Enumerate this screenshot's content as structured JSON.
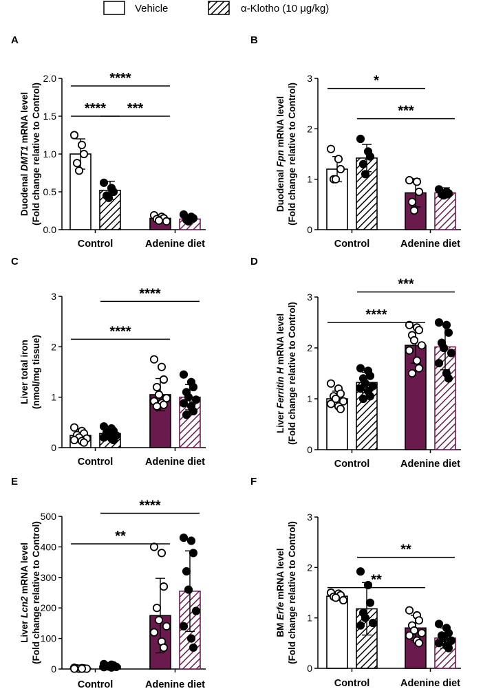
{
  "legend": {
    "vehicle_label": "Vehicle",
    "klotho_label": "α-Klotho (10 μg/kg)"
  },
  "colors": {
    "vehicle_fill": "#ffffff",
    "adenine_fill": "#6b1a4d",
    "klotho_hatch_control": "#000000",
    "klotho_hatch_adenine": "#6b1a4d",
    "ink": "#000000"
  },
  "chart_data": [
    {
      "panel": "A",
      "type": "bar",
      "ylabel_parts": [
        [
          "Duodenal ",
          "n"
        ],
        [
          "DMT1",
          "i"
        ],
        [
          " mRNA level",
          "n"
        ]
      ],
      "ylabel2": "(Fold change relative to Control)",
      "categories": [
        "Control",
        "Adenine diet"
      ],
      "ylim": [
        0,
        2.0
      ],
      "yticks": [
        0,
        0.5,
        1.0,
        1.5,
        2.0
      ],
      "ytick_labels": [
        "0.0",
        "0.5",
        "1.0",
        "1.5",
        "2.0"
      ],
      "bars": [
        {
          "group": 0,
          "treatment": "vehicle",
          "mean": 1.0,
          "sd": 0.2,
          "points": [
            1.25,
            1.12,
            1.0,
            0.88,
            0.78
          ]
        },
        {
          "group": 0,
          "treatment": "klotho",
          "mean": 0.52,
          "sd": 0.12,
          "points": [
            0.62,
            0.55,
            0.5,
            0.45,
            0.42
          ]
        },
        {
          "group": 1,
          "treatment": "vehicle",
          "mean": 0.15,
          "sd": 0.04,
          "points": [
            0.19,
            0.17,
            0.15,
            0.14,
            0.12,
            0.11
          ]
        },
        {
          "group": 1,
          "treatment": "klotho",
          "mean": 0.14,
          "sd": 0.04,
          "points": [
            0.2,
            0.17,
            0.15,
            0.13,
            0.11
          ]
        }
      ],
      "significance": [
        {
          "from": 0,
          "to": 2,
          "y": 1.9,
          "label": "****"
        },
        {
          "from": 0,
          "to": 1,
          "y": 1.5,
          "label": "****"
        },
        {
          "from": 1,
          "to": 2,
          "y": 1.5,
          "label": "***"
        }
      ]
    },
    {
      "panel": "B",
      "type": "bar",
      "ylabel_parts": [
        [
          "Duodenal ",
          "n"
        ],
        [
          "Fpn",
          "i"
        ],
        [
          " mRNA level",
          "n"
        ]
      ],
      "ylabel2": "(Fold change relative to Control)",
      "categories": [
        "Control",
        "Adenine diet"
      ],
      "ylim": [
        0,
        3
      ],
      "yticks": [
        0,
        1,
        2,
        3
      ],
      "ytick_labels": [
        "0",
        "1",
        "2",
        "3"
      ],
      "bars": [
        {
          "group": 0,
          "treatment": "vehicle",
          "mean": 1.2,
          "sd": 0.25,
          "points": [
            1.6,
            1.4,
            1.2,
            1.0,
            1.0
          ]
        },
        {
          "group": 0,
          "treatment": "klotho",
          "mean": 1.42,
          "sd": 0.27,
          "points": [
            1.8,
            1.55,
            1.45,
            1.3,
            1.1
          ]
        },
        {
          "group": 1,
          "treatment": "vehicle",
          "mean": 0.73,
          "sd": 0.28,
          "points": [
            0.98,
            0.95,
            0.75,
            0.55,
            0.38
          ]
        },
        {
          "group": 1,
          "treatment": "klotho",
          "mean": 0.73,
          "sd": 0.1,
          "points": [
            0.8,
            0.75,
            0.72,
            0.7,
            0.68
          ]
        }
      ],
      "significance": [
        {
          "from": 0,
          "to": 2,
          "y": 2.8,
          "label": "*"
        },
        {
          "from": 1,
          "to": 3,
          "y": 2.2,
          "label": "***"
        }
      ]
    },
    {
      "panel": "C",
      "type": "bar",
      "ylabel_parts": [
        [
          "Liver total iron",
          "n"
        ]
      ],
      "ylabel2": "(nmol/mg tissue)",
      "categories": [
        "Control",
        "Adenine diet"
      ],
      "ylim": [
        0,
        3
      ],
      "yticks": [
        0,
        1,
        2,
        3
      ],
      "ytick_labels": [
        "0",
        "1",
        "2",
        "3"
      ],
      "bars": [
        {
          "group": 0,
          "treatment": "vehicle",
          "mean": 0.24,
          "sd": 0.08,
          "points": [
            0.4,
            0.33,
            0.28,
            0.25,
            0.2,
            0.18,
            0.15,
            0.13,
            0.1
          ]
        },
        {
          "group": 0,
          "treatment": "klotho",
          "mean": 0.28,
          "sd": 0.08,
          "points": [
            0.42,
            0.38,
            0.33,
            0.3,
            0.27,
            0.24,
            0.2,
            0.18,
            0.15
          ]
        },
        {
          "group": 1,
          "treatment": "vehicle",
          "mean": 1.05,
          "sd": 0.32,
          "points": [
            1.75,
            1.6,
            1.35,
            1.2,
            1.05,
            0.98,
            0.92,
            0.88,
            0.85,
            0.82
          ]
        },
        {
          "group": 1,
          "treatment": "klotho",
          "mean": 1.0,
          "sd": 0.25,
          "points": [
            1.45,
            1.3,
            1.2,
            1.1,
            1.0,
            0.95,
            0.88,
            0.82,
            0.72,
            0.65
          ]
        }
      ],
      "significance": [
        {
          "from": 0,
          "to": 2,
          "y": 2.15,
          "label": "****"
        },
        {
          "from": 1,
          "to": 3,
          "y": 2.9,
          "label": "****"
        }
      ]
    },
    {
      "panel": "D",
      "type": "bar",
      "ylabel_parts": [
        [
          "Liver ",
          "n"
        ],
        [
          "Ferritin H",
          "i"
        ],
        [
          " mRNA level",
          "n"
        ]
      ],
      "ylabel2": "(Fold change relative to Control)",
      "categories": [
        "Control",
        "Adenine diet"
      ],
      "ylim": [
        0,
        3
      ],
      "yticks": [
        0,
        1,
        2,
        3
      ],
      "ytick_labels": [
        "0",
        "1",
        "2",
        "3"
      ],
      "bars": [
        {
          "group": 0,
          "treatment": "vehicle",
          "mean": 1.0,
          "sd": 0.15,
          "points": [
            1.3,
            1.2,
            1.1,
            1.05,
            1.0,
            0.95,
            0.9,
            0.85,
            0.8
          ]
        },
        {
          "group": 0,
          "treatment": "klotho",
          "mean": 1.32,
          "sd": 0.2,
          "points": [
            1.6,
            1.55,
            1.45,
            1.4,
            1.3,
            1.25,
            1.2,
            1.15,
            1.05,
            1.0
          ]
        },
        {
          "group": 1,
          "treatment": "vehicle",
          "mean": 2.05,
          "sd": 0.35,
          "points": [
            2.45,
            2.4,
            2.35,
            2.25,
            2.15,
            2.05,
            1.95,
            1.75,
            1.6,
            1.5
          ]
        },
        {
          "group": 1,
          "treatment": "klotho",
          "mean": 2.02,
          "sd": 0.45,
          "points": [
            2.5,
            2.45,
            2.3,
            2.1,
            2.0,
            1.9,
            1.7,
            1.5,
            1.4
          ]
        }
      ],
      "significance": [
        {
          "from": 0,
          "to": 2,
          "y": 2.5,
          "label": "****"
        },
        {
          "from": 1,
          "to": 3,
          "y": 3.1,
          "label": "***"
        }
      ]
    },
    {
      "panel": "E",
      "type": "bar",
      "ylabel_parts": [
        [
          "Liver ",
          "n"
        ],
        [
          "Lcn2",
          "i"
        ],
        [
          " mRNA level",
          "n"
        ]
      ],
      "ylabel2": "(Fold change relative to Control)",
      "categories": [
        "Control",
        "Adenine diet"
      ],
      "ylim": [
        0,
        500
      ],
      "yticks": [
        0,
        100,
        200,
        300,
        400,
        500
      ],
      "ytick_labels": [
        "0",
        "100",
        "200",
        "300",
        "400",
        "500"
      ],
      "bars": [
        {
          "group": 0,
          "treatment": "vehicle",
          "mean": 2,
          "sd": 1,
          "points": [
            4,
            3,
            2,
            2,
            1,
            1,
            1,
            1
          ]
        },
        {
          "group": 0,
          "treatment": "klotho",
          "mean": 10,
          "sd": 4,
          "points": [
            16,
            14,
            12,
            10,
            8,
            7,
            6,
            5
          ]
        },
        {
          "group": 1,
          "treatment": "vehicle",
          "mean": 175,
          "sd": 122,
          "points": [
            400,
            380,
            270,
            200,
            160,
            140,
            120,
            90,
            70
          ]
        },
        {
          "group": 1,
          "treatment": "klotho",
          "mean": 255,
          "sd": 132,
          "points": [
            430,
            420,
            380,
            320,
            260,
            190,
            140,
            100,
            70
          ]
        }
      ],
      "significance": [
        {
          "from": 0,
          "to": 2,
          "y": 410,
          "label": "**"
        },
        {
          "from": 1,
          "to": 3,
          "y": 510,
          "label": "****"
        }
      ]
    },
    {
      "panel": "F",
      "type": "bar",
      "ylabel_parts": [
        [
          "BM ",
          "n"
        ],
        [
          "Erfe",
          "i"
        ],
        [
          " mRNA level",
          "n"
        ]
      ],
      "ylabel2": "(Fold change relative to Control)",
      "categories": [
        "Control",
        "Adenine diet"
      ],
      "ylim": [
        0,
        3
      ],
      "yticks": [
        0,
        1,
        2,
        3
      ],
      "ytick_labels": [
        "0",
        "1",
        "2",
        "3"
      ],
      "bars": [
        {
          "group": 0,
          "treatment": "vehicle",
          "mean": 1.43,
          "sd": 0.08,
          "points": [
            1.5,
            1.48,
            1.45,
            1.42,
            1.4,
            1.35
          ]
        },
        {
          "group": 0,
          "treatment": "klotho",
          "mean": 1.18,
          "sd": 0.52,
          "points": [
            1.92,
            1.65,
            1.3,
            1.1,
            1.0,
            0.9,
            0.85
          ]
        },
        {
          "group": 1,
          "treatment": "vehicle",
          "mean": 0.8,
          "sd": 0.25,
          "points": [
            1.15,
            1.05,
            0.95,
            0.85,
            0.75,
            0.7,
            0.65,
            0.55,
            0.5
          ]
        },
        {
          "group": 1,
          "treatment": "klotho",
          "mean": 0.6,
          "sd": 0.2,
          "points": [
            0.88,
            0.8,
            0.7,
            0.65,
            0.6,
            0.55,
            0.5,
            0.45,
            0.4
          ]
        }
      ],
      "significance": [
        {
          "from": 0,
          "to": 2,
          "y": 1.6,
          "label": "**"
        },
        {
          "from": 1,
          "to": 3,
          "y": 2.2,
          "label": "**"
        }
      ]
    }
  ]
}
